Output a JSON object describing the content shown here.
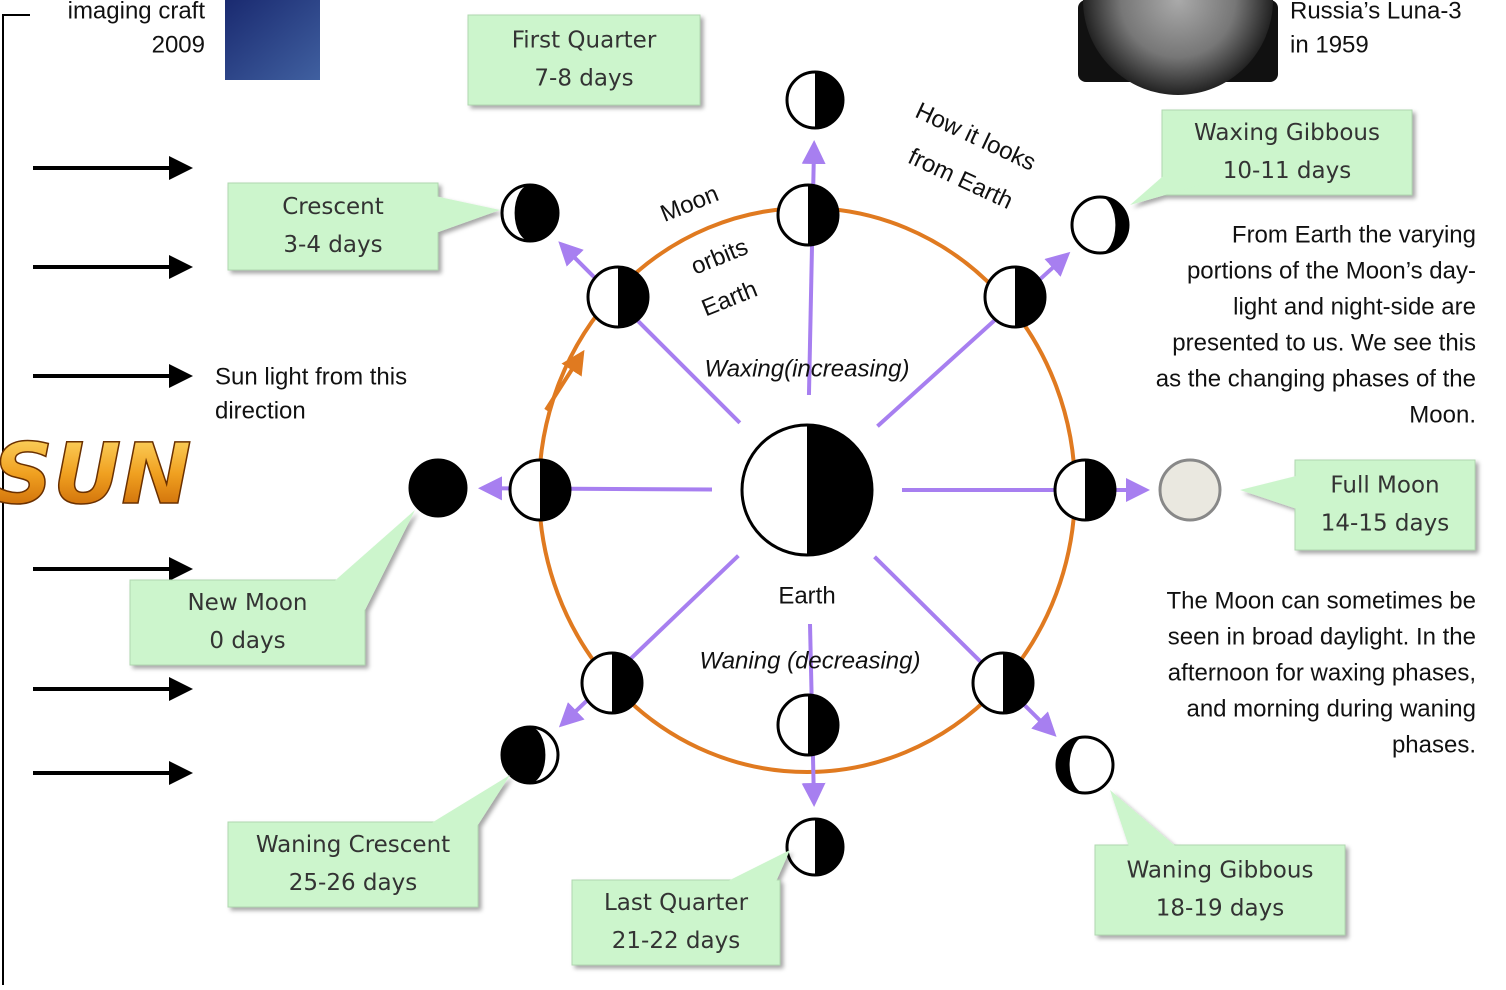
{
  "captions": {
    "spacecraft": [
      "imaging craft",
      "2009"
    ],
    "luna": [
      "Russia’s Luna-3",
      "in 1959"
    ]
  },
  "phases": [
    {
      "name": "First Quarter",
      "days": "7-8 days"
    },
    {
      "name": "Crescent",
      "days": "3-4 days"
    },
    {
      "name": "Waxing Gibbous",
      "days": "10-11 days"
    },
    {
      "name": "Full Moon",
      "days": "14-15 days"
    },
    {
      "name": "New Moon",
      "days": "0 days"
    },
    {
      "name": "Waning Crescent",
      "days": "25-26 days"
    },
    {
      "name": "Last Quarter",
      "days": "21-22 days"
    },
    {
      "name": "Waning Gibbous",
      "days": "18-19 days"
    }
  ],
  "sunlight": [
    "Sun light from this",
    "direction"
  ],
  "sun": "SUN",
  "orbit_label": [
    "Moon",
    "orbits",
    "Earth"
  ],
  "view_label": [
    "How it looks",
    "from Earth"
  ],
  "waxing": "Waxing(increasing)",
  "waning": "Waning (decreasing)",
  "earth": "Earth",
  "notes": [
    [
      "From Earth the varying",
      "portions of the Moon’s day-",
      "light and night-side are",
      "presented to us. We see this",
      "as the changing phases of the",
      "Moon."
    ],
    [
      "The Moon can sometimes be",
      "seen in broad daylight. In the",
      "afternoon for waxing phases,",
      "and morning during waning",
      "phases."
    ]
  ]
}
